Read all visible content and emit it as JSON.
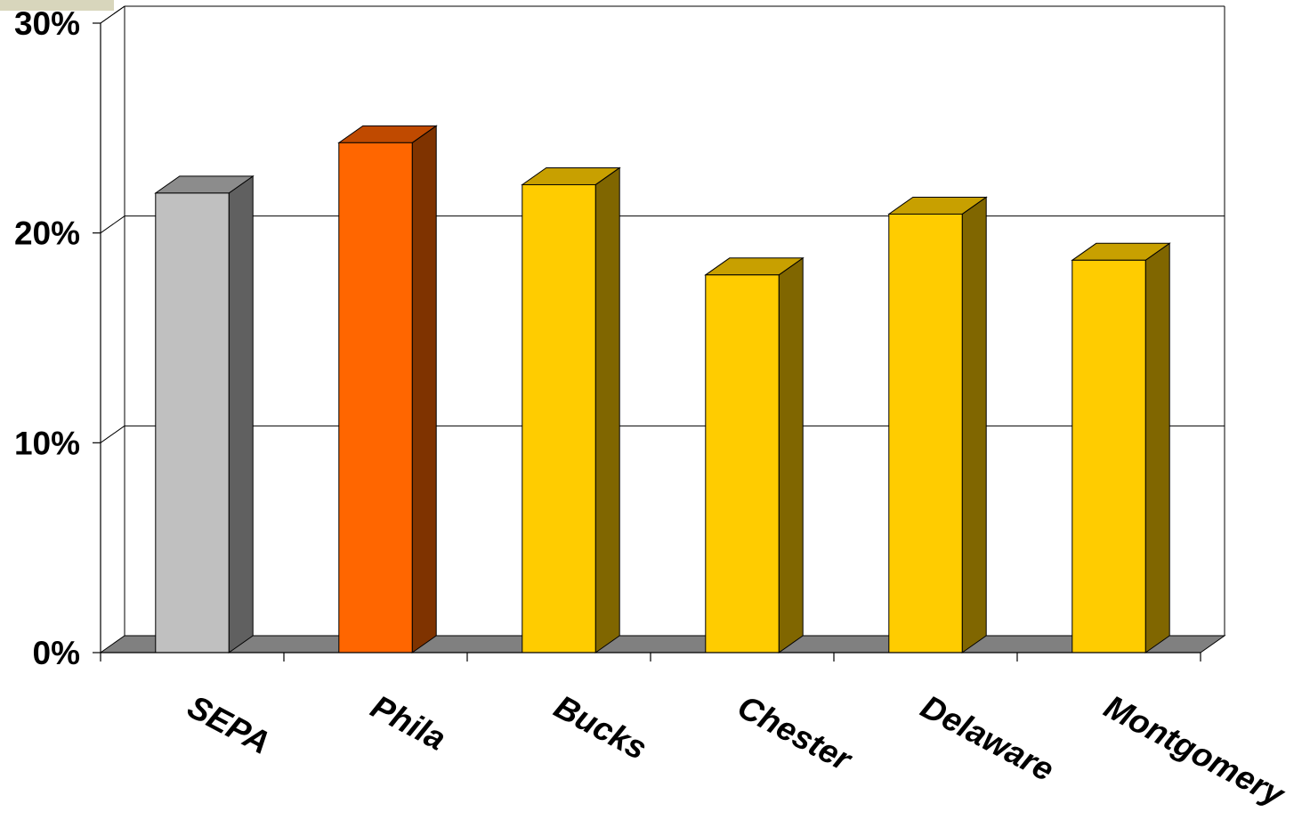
{
  "chart_data": {
    "type": "bar",
    "three_d": true,
    "title": "",
    "xlabel": "",
    "ylabel": "",
    "categories": [
      "SEPA",
      "Phila",
      "Bucks",
      "Chester",
      "Delaware",
      "Montgomery"
    ],
    "values": [
      0.219,
      0.243,
      0.223,
      0.18,
      0.209,
      0.187
    ],
    "ylim": [
      0,
      0.3
    ],
    "yticks": [
      0,
      0.1,
      0.2,
      0.3
    ],
    "ytick_labels": [
      "0%",
      "10%",
      "20%",
      "30%"
    ],
    "grid": true,
    "legend": "none",
    "bar_colors": [
      {
        "front": "#C0C0C0",
        "top": "#8C8C8C",
        "side": "#606060"
      },
      {
        "front": "#FF6600",
        "top": "#C04A00",
        "side": "#7F3300"
      },
      {
        "front": "#FFCC00",
        "top": "#C8A000",
        "side": "#806600"
      },
      {
        "front": "#FFCC00",
        "top": "#C8A000",
        "side": "#806600"
      },
      {
        "front": "#FFCC00",
        "top": "#C8A000",
        "side": "#806600"
      },
      {
        "front": "#FFCC00",
        "top": "#C8A000",
        "side": "#806600"
      }
    ],
    "floor_color": "#808080"
  }
}
